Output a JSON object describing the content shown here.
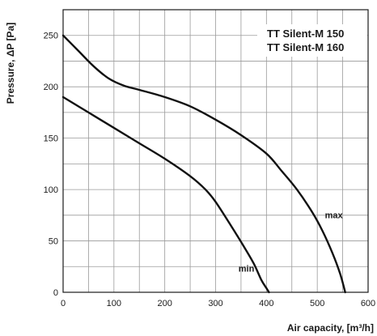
{
  "chart_data": {
    "type": "line",
    "title_lines": [
      "TT Silent-M 150",
      "TT Silent-M 160"
    ],
    "xlabel": "Air capacity, [m³/h]",
    "ylabel": "Pressure, ΔP [Pa]",
    "xlim": [
      0,
      600
    ],
    "ylim": [
      0,
      275
    ],
    "x_ticks": [
      0,
      100,
      200,
      300,
      400,
      500,
      600
    ],
    "y_ticks": [
      0,
      50,
      100,
      150,
      200,
      250
    ],
    "grid": true,
    "series": [
      {
        "name": "max",
        "x": [
          0,
          30,
          60,
          90,
          120,
          150,
          200,
          250,
          300,
          350,
          400,
          430,
          460,
          490,
          510,
          530,
          545,
          555
        ],
        "y": [
          250,
          235,
          220,
          208,
          201,
          197,
          190,
          181,
          168,
          153,
          135,
          118,
          100,
          78,
          60,
          38,
          18,
          0
        ]
      },
      {
        "name": "min",
        "x": [
          0,
          50,
          100,
          150,
          200,
          250,
          280,
          300,
          330,
          355,
          375,
          390,
          400,
          405
        ],
        "y": [
          190,
          175,
          160,
          145,
          130,
          113,
          100,
          88,
          65,
          45,
          28,
          12,
          4,
          0
        ]
      }
    ],
    "annotations": [
      {
        "text": "max",
        "x": 515,
        "y": 72
      },
      {
        "text": "min",
        "x": 345,
        "y": 20
      }
    ]
  }
}
